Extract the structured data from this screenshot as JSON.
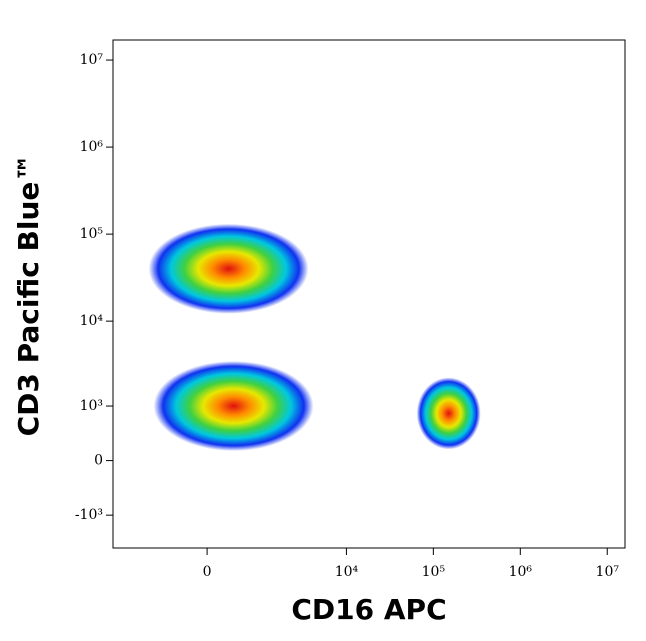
{
  "chart_data": {
    "type": "density",
    "x_label": "CD16 APC",
    "y_label": "CD3 Pacific Blue™",
    "scale": "biexponential",
    "xlim": [
      -3000,
      16000000
    ],
    "xticks": [
      0,
      {
        "value": 10000,
        "label": "10⁴"
      },
      {
        "value": 100000,
        "label": "10⁵"
      },
      {
        "value": 1000000,
        "label": "10⁶"
      },
      {
        "value": 10000000,
        "label": "10⁷"
      }
    ],
    "ylim": [
      -2500,
      17000000
    ],
    "yticks": [
      {
        "value": -1000,
        "label": "-10³"
      },
      0,
      {
        "value": 1000,
        "label": "10³"
      },
      {
        "value": 10000,
        "label": "10⁴"
      },
      {
        "value": 100000,
        "label": "10⁵"
      },
      {
        "value": 1000000,
        "label": "10⁶"
      },
      {
        "value": 10000000,
        "label": "10⁷"
      }
    ],
    "populations": [
      {
        "x": 300,
        "y": 40000
      },
      {
        "x": 380,
        "y": 1000
      },
      {
        "x": 150000,
        "y": 800
      }
    ]
  }
}
